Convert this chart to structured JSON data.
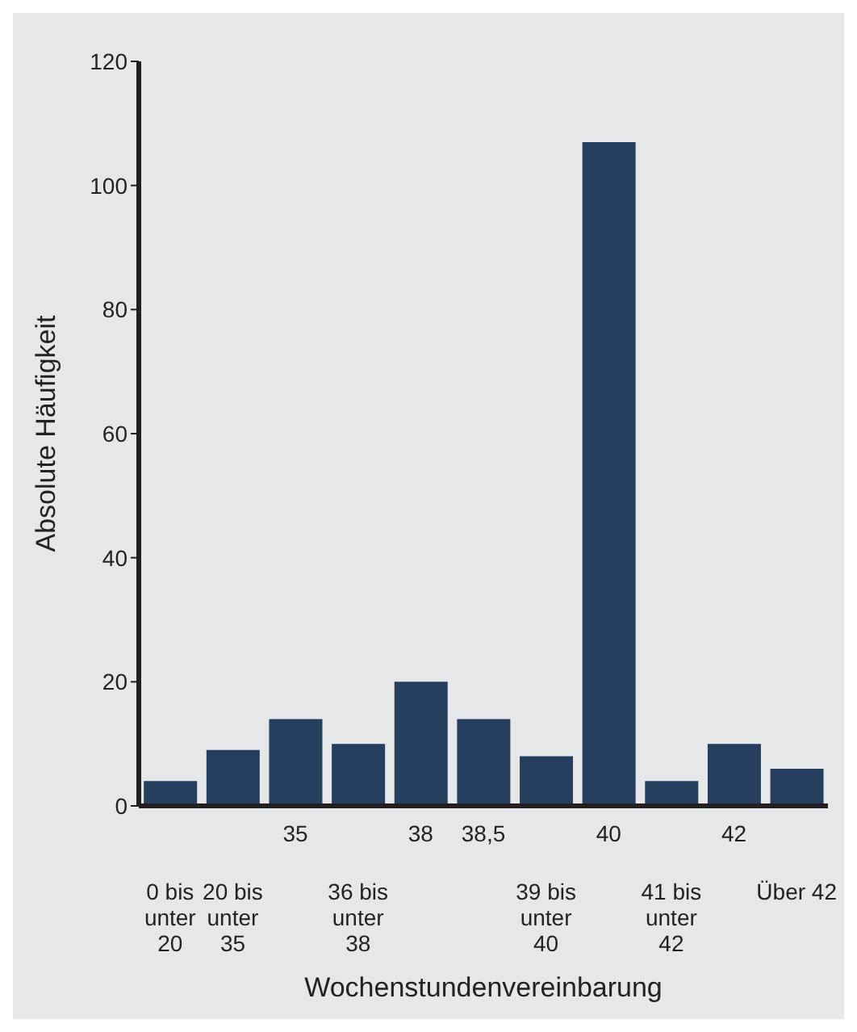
{
  "chart_data": {
    "type": "bar",
    "xlabel": "Wochenstundenvereinbarung",
    "ylabel": "Absolute Häufigkeit",
    "categories": [
      "0 bis unter 20",
      "20 bis unter 35",
      "35",
      "36 bis unter 38",
      "38",
      "38,5",
      "39 bis unter 40",
      "40",
      "41 bis unter 42",
      "42",
      "Über 42"
    ],
    "values": [
      4,
      9,
      14,
      10,
      20,
      14,
      8,
      107,
      4,
      10,
      6
    ],
    "color": "#263f5f",
    "ylim": [
      0,
      120
    ],
    "yticks": [
      0,
      20,
      40,
      60,
      80,
      100,
      120
    ],
    "grid": false,
    "legend": false
  }
}
